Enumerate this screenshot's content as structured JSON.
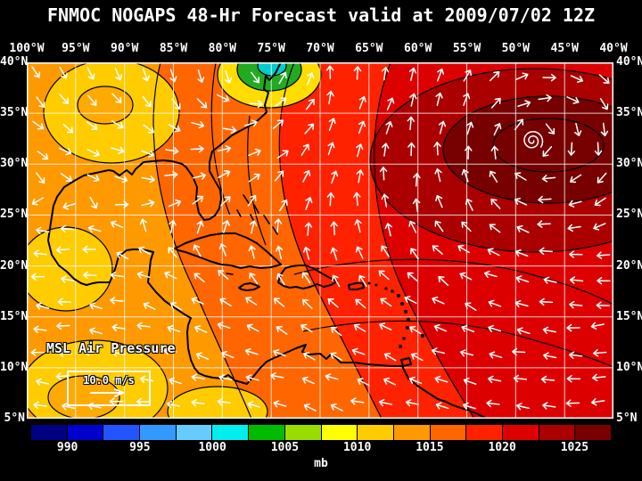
{
  "title": "FNMOC NOGAPS 48-Hr Forecast valid at 2009/07/02 12Z",
  "map": {
    "lon_labels": [
      "100°W",
      "95°W",
      "90°W",
      "85°W",
      "80°W",
      "75°W",
      "70°W",
      "65°W",
      "60°W",
      "55°W",
      "50°W",
      "45°W",
      "40°W"
    ],
    "lat_labels": [
      "40°N",
      "35°N",
      "30°N",
      "25°N",
      "20°N",
      "15°N",
      "10°N",
      "5°N"
    ],
    "field_label": "MSL Air Pressure",
    "wind_legend_label": "10.0 m/s"
  },
  "colorbar": {
    "unit_label": "mb",
    "tick_labels": [
      "990",
      "995",
      "1000",
      "1005",
      "1010",
      "1015",
      "1020",
      "1025"
    ],
    "min": 987.5,
    "max": 1027.5,
    "step": 2.5,
    "colors": [
      "#000080",
      "#0000cc",
      "#2255ff",
      "#3399ff",
      "#66ccff",
      "#00eeee",
      "#00bb00",
      "#99dd00",
      "#ffff00",
      "#ffcc00",
      "#ff9900",
      "#ff6600",
      "#ff2200",
      "#dd0000",
      "#aa0000",
      "#770000"
    ]
  },
  "chart_data": {
    "type": "heatmap",
    "title": "FNMOC NOGAPS 48-Hr Forecast valid at 2009/07/02 12Z",
    "model": "NOGAPS",
    "center": "FNMOC",
    "forecast_hour": 48,
    "valid_time": "2009/07/02 12Z",
    "field": "MSL Air Pressure",
    "unit": "mb",
    "lon_range_deg_w": [
      100,
      40
    ],
    "lat_range_deg_n": [
      5,
      40
    ],
    "grid_interval_deg": 5,
    "colorbar_levels_mb": [
      990,
      995,
      1000,
      1005,
      1010,
      1015,
      1020,
      1025
    ],
    "colorbar_colors": [
      "#000080",
      "#0000cc",
      "#2255ff",
      "#3399ff",
      "#66ccff",
      "#00eeee",
      "#00bb00",
      "#99dd00",
      "#ffff00",
      "#ffcc00",
      "#ff9900",
      "#ff6600",
      "#ff2200",
      "#dd0000",
      "#aa0000",
      "#770000"
    ],
    "overlay": "wind vectors",
    "wind_reference_speed": "10.0 m/s",
    "features": [
      {
        "type": "high",
        "approx_location": "31N 48W",
        "pressure_band_mb": "1022.5-1027.5"
      },
      {
        "type": "low",
        "approx_location": "40N 76W",
        "pressure_band_mb": "1000-1005"
      }
    ]
  }
}
